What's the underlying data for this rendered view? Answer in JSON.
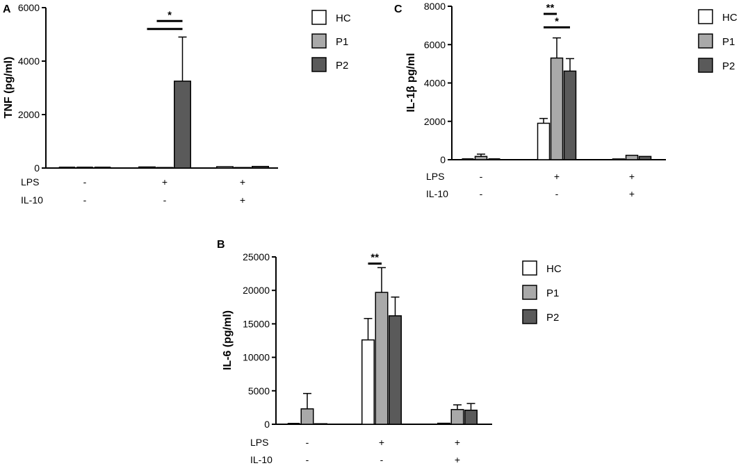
{
  "chart_data": [
    {
      "type": "bar",
      "panel_label": "A",
      "ylabel": "TNF (pg/ml)",
      "ylim": [
        0,
        6000
      ],
      "yticks": [
        "0",
        "2000",
        "4000",
        "6000"
      ],
      "row_labels": [
        "LPS",
        "IL-10"
      ],
      "groups": [
        {
          "lps": "-",
          "il10": "-"
        },
        {
          "lps": "+",
          "il10": "-"
        },
        {
          "lps": "+",
          "il10": "+"
        }
      ],
      "series": [
        {
          "name": "HC",
          "color": "#ffffff",
          "values": [
            0,
            40,
            50
          ],
          "errors": [
            0,
            0,
            0
          ]
        },
        {
          "name": "P1",
          "color": "#a9a9a9",
          "values": [
            10,
            20,
            20
          ],
          "errors": [
            0,
            0,
            0
          ]
        },
        {
          "name": "P2",
          "color": "#5a5a5a",
          "values": [
            0,
            3250,
            60
          ],
          "errors": [
            0,
            1650,
            0
          ]
        }
      ],
      "significance": [
        {
          "label": "*",
          "from_group": 1,
          "from_series": 0.55,
          "to_group": 1,
          "to_series": 2,
          "y": 5500
        },
        {
          "label": "",
          "from_group": 1,
          "from_series": 0,
          "to_group": 1,
          "to_series": 2,
          "y": 5200
        }
      ],
      "legend_position": "right"
    },
    {
      "type": "bar",
      "panel_label": "C",
      "ylabel": "IL-1β pg/ml",
      "ylim": [
        0,
        8000
      ],
      "yticks": [
        "0",
        "2000",
        "4000",
        "6000",
        "8000"
      ],
      "row_labels": [
        "LPS",
        "IL-10"
      ],
      "groups": [
        {
          "lps": "-",
          "il10": "-"
        },
        {
          "lps": "+",
          "il10": "-"
        },
        {
          "lps": "+",
          "il10": "+"
        }
      ],
      "series": [
        {
          "name": "HC",
          "color": "#ffffff",
          "values": [
            0,
            1900,
            40
          ],
          "errors": [
            0,
            250,
            0
          ]
        },
        {
          "name": "P1",
          "color": "#a9a9a9",
          "values": [
            170,
            5300,
            230
          ],
          "errors": [
            120,
            1050,
            0
          ]
        },
        {
          "name": "P2",
          "color": "#5a5a5a",
          "values": [
            0,
            4620,
            170
          ],
          "errors": [
            0,
            650,
            0
          ]
        }
      ],
      "significance": [
        {
          "label": "**",
          "from_group": 1,
          "from_series": 0,
          "to_group": 1,
          "to_series": 1,
          "y": 7600
        },
        {
          "label": "*",
          "from_group": 1,
          "from_series": 0,
          "to_group": 1,
          "to_series": 2,
          "y": 6900
        }
      ],
      "legend_position": "right"
    },
    {
      "type": "bar",
      "panel_label": "B",
      "ylabel": "IL-6 (pg/ml)",
      "ylim": [
        0,
        25000
      ],
      "yticks": [
        "0",
        "5000",
        "10000",
        "15000",
        "20000",
        "25000"
      ],
      "row_labels": [
        "LPS",
        "IL-10"
      ],
      "groups": [
        {
          "lps": "-",
          "il10": "-"
        },
        {
          "lps": "+",
          "il10": "-"
        },
        {
          "lps": "+",
          "il10": "+"
        }
      ],
      "series": [
        {
          "name": "HC",
          "color": "#ffffff",
          "values": [
            0,
            12600,
            150
          ],
          "errors": [
            0,
            3200,
            0
          ]
        },
        {
          "name": "P1",
          "color": "#a9a9a9",
          "values": [
            2300,
            19700,
            2200
          ],
          "errors": [
            2300,
            3700,
            700
          ]
        },
        {
          "name": "P2",
          "color": "#5a5a5a",
          "values": [
            80,
            16200,
            2100
          ],
          "errors": [
            0,
            2800,
            1000
          ]
        }
      ],
      "significance": [
        {
          "label": "**",
          "from_group": 1,
          "from_series": 0,
          "to_group": 1,
          "to_series": 1,
          "y": 24000
        }
      ],
      "legend_position": "right"
    }
  ]
}
